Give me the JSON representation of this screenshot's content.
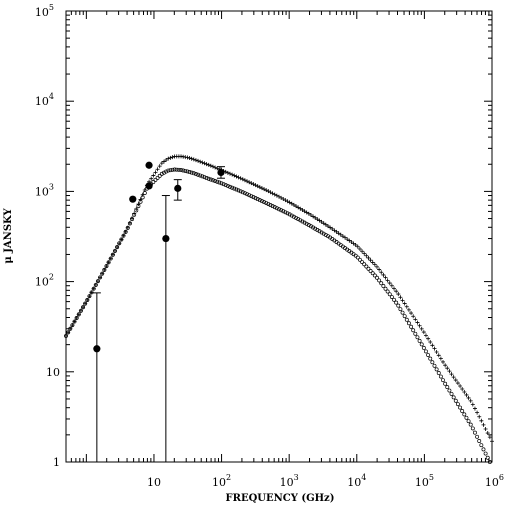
{
  "chart_data": {
    "type": "scatter",
    "title": "",
    "xlabel": "FREQUENCY (GHz)",
    "ylabel": "μ JANSKY",
    "xscale": "log",
    "yscale": "log",
    "xlim": [
      0.5,
      1000000
    ],
    "ylim": [
      1,
      100000
    ],
    "grid": false,
    "x_tick_labels": [
      {
        "x": 10,
        "base": "10",
        "exp": ""
      },
      {
        "x": 100,
        "base": "10",
        "exp": "2"
      },
      {
        "x": 1000,
        "base": "10",
        "exp": "3"
      },
      {
        "x": 10000,
        "base": "10",
        "exp": "4"
      },
      {
        "x": 100000,
        "base": "10",
        "exp": "5"
      },
      {
        "x": 1000000,
        "base": "10",
        "exp": "6"
      }
    ],
    "y_tick_labels": [
      {
        "y": 1,
        "base": "1",
        "exp": ""
      },
      {
        "y": 10,
        "base": "10",
        "exp": ""
      },
      {
        "y": 100,
        "base": "10",
        "exp": "2"
      },
      {
        "y": 1000,
        "base": "10",
        "exp": "3"
      },
      {
        "y": 10000,
        "base": "10",
        "exp": "4"
      },
      {
        "y": 100000,
        "base": "10",
        "exp": "5"
      }
    ],
    "observations": [
      {
        "x": 1.43,
        "y": 18,
        "y_low": 1,
        "y_high": 75
      },
      {
        "x": 4.86,
        "y": 820
      },
      {
        "x": 8.46,
        "y": 1950
      },
      {
        "x": 8.46,
        "y": 1150
      },
      {
        "x": 15,
        "y": 300,
        "y_low": 1,
        "y_high": 900
      },
      {
        "x": 22.5,
        "y": 1080,
        "y_low": 800,
        "y_high": 1350
      },
      {
        "x": 98,
        "y": 1620,
        "y_low": 1400,
        "y_high": 1880
      }
    ],
    "series": [
      {
        "marker": "plus",
        "x": [
          0.5,
          1,
          2,
          4,
          8,
          13,
          16,
          20,
          25,
          32,
          40,
          63,
          100,
          200,
          500,
          1000,
          2000,
          4000,
          10000,
          20000,
          40000,
          100000,
          200000,
          500000,
          1000000
        ],
        "y": [
          25,
          60,
          150,
          380,
          1200,
          2050,
          2300,
          2440,
          2450,
          2370,
          2250,
          1980,
          1720,
          1380,
          1000,
          760,
          560,
          400,
          250,
          145,
          75,
          27,
          12,
          4.6,
          1.7
        ]
      },
      {
        "marker": "circle",
        "x": [
          0.5,
          1,
          2,
          4,
          8,
          13,
          16,
          20,
          25,
          32,
          40,
          63,
          100,
          200,
          500,
          1000,
          2000,
          4000,
          10000,
          20000,
          40000,
          100000,
          200000,
          500000,
          1000000
        ],
        "y": [
          25,
          60,
          150,
          380,
          1100,
          1560,
          1700,
          1750,
          1730,
          1660,
          1580,
          1390,
          1230,
          990,
          720,
          560,
          420,
          310,
          190,
          110,
          56,
          18,
          7.5,
          2.5,
          0.9
        ]
      }
    ]
  }
}
